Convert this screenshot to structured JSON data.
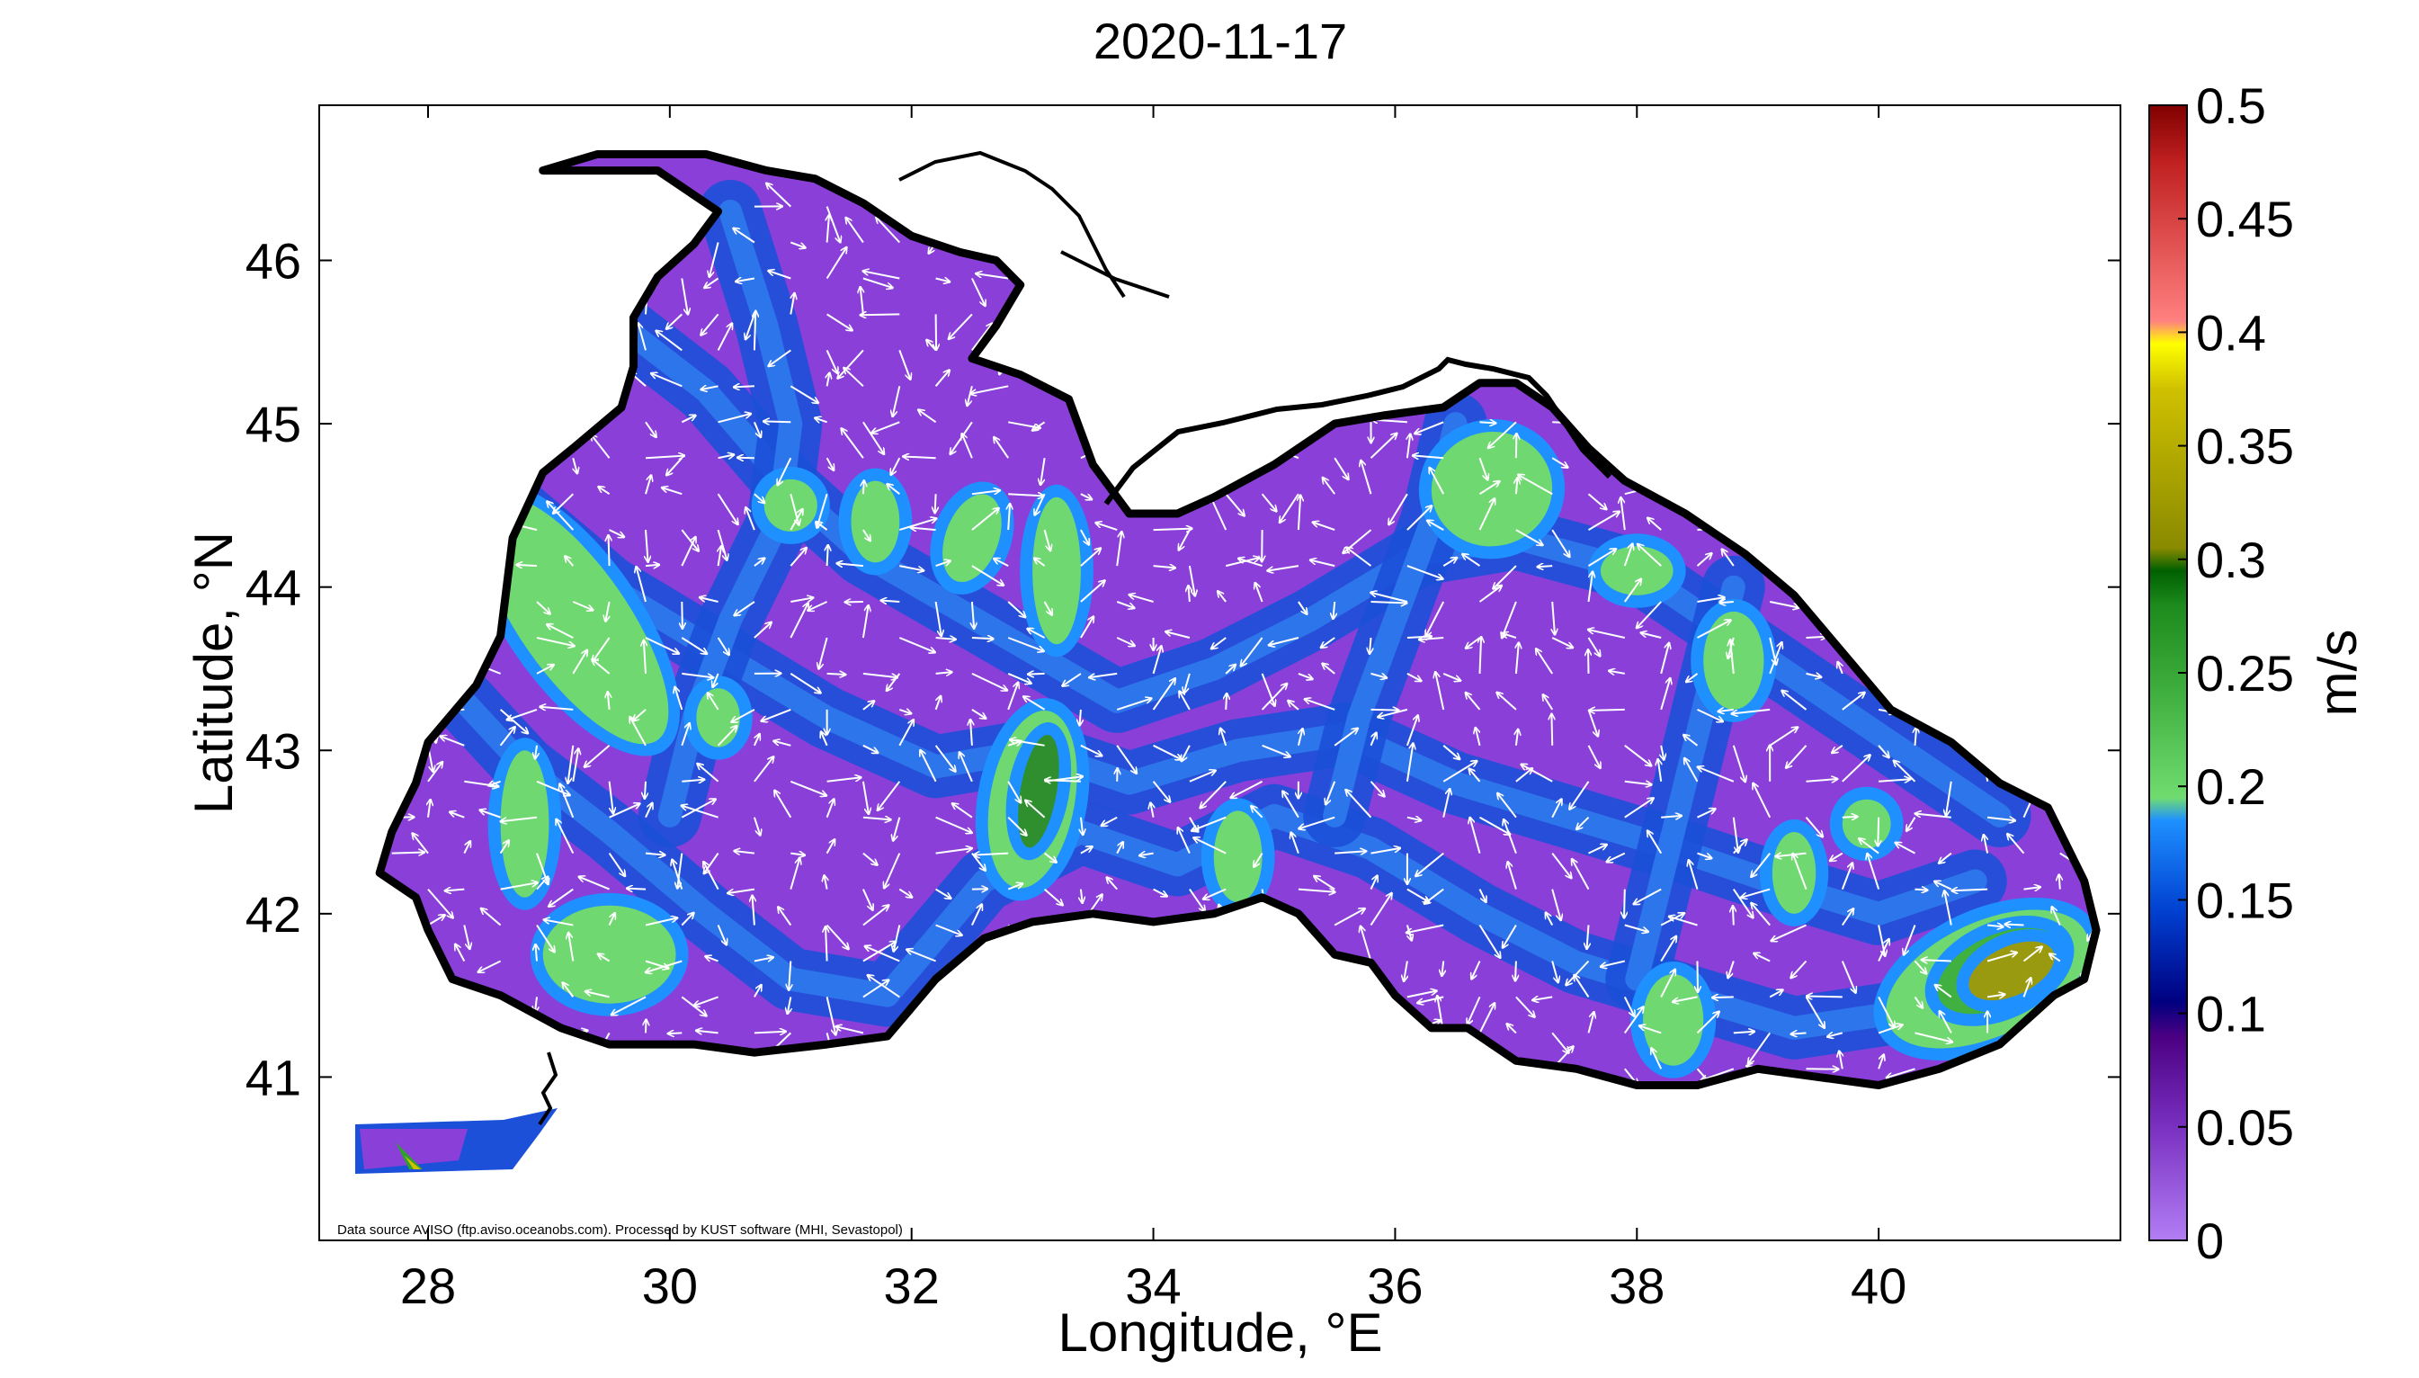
{
  "map": {
    "title": "2020-11-17",
    "xlabel": "Longitude, °E",
    "ylabel": "Latitude, °N",
    "xlim": [
      27.1,
      42.0
    ],
    "ylim": [
      40.0,
      46.95
    ],
    "x_ticks": [
      "28",
      "30",
      "32",
      "34",
      "36",
      "38",
      "40"
    ],
    "y_ticks": [
      "41",
      "42",
      "43",
      "44",
      "45",
      "46"
    ],
    "credit": "Data source AVISO (ftp.aviso.oceanobs.com). Processed by KUST software (MHI, Sevastopol)",
    "field": "sea surface current speed with velocity arrows",
    "speed_range_ms": [
      0,
      0.5
    ],
    "fast_current_zones_ms": [
      {
        "area": "western shelf off Bulgaria/Romania",
        "speed": 0.22
      },
      {
        "area": "central basin near 33°E, 42.7°N",
        "speed": 0.27
      },
      {
        "area": "southeastern corner near 41°E, 41.7°N",
        "speed": 0.34
      },
      {
        "area": "Bosporus region near 27.8°E, 40.6°N",
        "speed": 0.33
      }
    ]
  },
  "colorbar": {
    "label": "m/s",
    "ticks": [
      "0.5",
      "0.45",
      "0.4",
      "0.35",
      "0.3",
      "0.25",
      "0.2",
      "0.15",
      "0.1",
      "0.05",
      "0"
    ],
    "colors": [
      "#800000",
      "#c02020",
      "#e05050",
      "#ff8080",
      "#ffff00",
      "#cfc000",
      "#8a8a00",
      "#006000",
      "#1c8a1c",
      "#40b040",
      "#70dc70",
      "#1e90ff",
      "#0040d0",
      "#000080",
      "#4b0082",
      "#7a30c0",
      "#b27ef5"
    ]
  },
  "colors": {
    "land": "#ffffff",
    "coast": "#000000",
    "arrows": "#ffffff",
    "slow_water": "#8a3fd8",
    "medium_water": "#1c50d8",
    "fast_water": "#70d870"
  }
}
